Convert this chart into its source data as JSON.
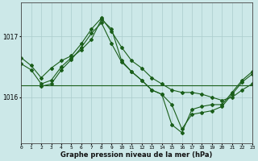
{
  "xlabel": "Graphe pression niveau de la mer (hPa)",
  "bg_color": "#cce8e8",
  "line_color": "#1a5e1a",
  "yticks": [
    1016,
    1017
  ],
  "xlim": [
    0,
    23
  ],
  "ylim": [
    1015.25,
    1017.55
  ],
  "series1_x": [
    0,
    1,
    2,
    3,
    4,
    5,
    6,
    7,
    8,
    9,
    10,
    11,
    12,
    13,
    14,
    15,
    16,
    17,
    18,
    19,
    20,
    21,
    22,
    23
  ],
  "series1_y": [
    1016.65,
    1016.52,
    1016.32,
    1016.48,
    1016.6,
    1016.68,
    1016.88,
    1017.12,
    1017.3,
    1017.08,
    1016.82,
    1016.6,
    1016.48,
    1016.32,
    1016.22,
    1016.12,
    1016.08,
    1016.08,
    1016.05,
    1016.0,
    1015.95,
    1016.0,
    1016.12,
    1016.22
  ],
  "series2_x": [
    0,
    1,
    2,
    3,
    4,
    5,
    6,
    7,
    8,
    9,
    10,
    11,
    12,
    13,
    14,
    15,
    16,
    17,
    18,
    19,
    20,
    21,
    22,
    23
  ],
  "series2_y": [
    1016.55,
    1016.45,
    1016.22,
    1016.28,
    1016.5,
    1016.65,
    1016.78,
    1016.95,
    1017.28,
    1017.12,
    1016.6,
    1016.42,
    1016.28,
    1016.12,
    1016.05,
    1015.55,
    1015.42,
    1015.8,
    1015.85,
    1015.88,
    1015.88,
    1016.08,
    1016.28,
    1016.42
  ],
  "series3_x": [
    0,
    23
  ],
  "series3_y": [
    1016.2,
    1016.2
  ],
  "series4_x": [
    2,
    3,
    4,
    5,
    6,
    7,
    8,
    9,
    10,
    11,
    12,
    13,
    14,
    15,
    16,
    17,
    18,
    19,
    20,
    21,
    22,
    23
  ],
  "series4_y": [
    1016.18,
    1016.22,
    1016.45,
    1016.62,
    1016.82,
    1017.05,
    1017.22,
    1016.88,
    1016.58,
    1016.42,
    1016.28,
    1016.12,
    1016.05,
    1015.88,
    1015.48,
    1015.72,
    1015.75,
    1015.78,
    1015.85,
    1016.05,
    1016.25,
    1016.38
  ]
}
